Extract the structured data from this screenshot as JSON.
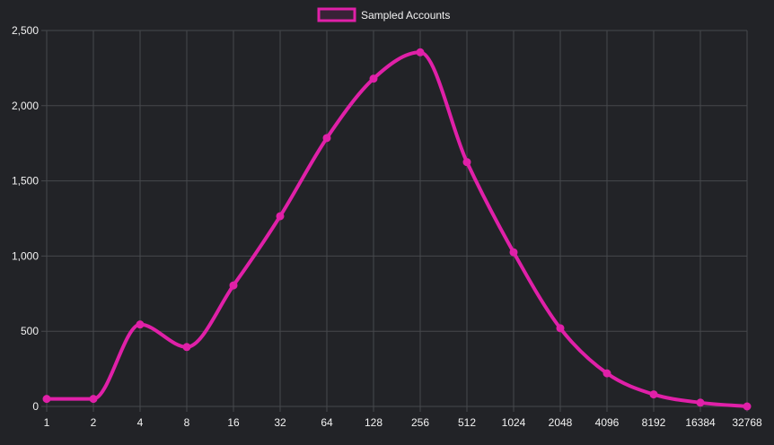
{
  "chart_data": {
    "type": "line",
    "x": [
      "1",
      "2",
      "4",
      "8",
      "16",
      "32",
      "64",
      "128",
      "256",
      "512",
      "1024",
      "2048",
      "4096",
      "8192",
      "16384",
      "32768"
    ],
    "series": [
      {
        "name": "Sampled Accounts",
        "values": [
          50,
          50,
          545,
          395,
          805,
          1265,
          1785,
          2180,
          2355,
          1625,
          1025,
          520,
          220,
          80,
          25,
          0
        ]
      }
    ],
    "ylim": [
      0,
      2500
    ],
    "yticks": [
      "0",
      "500",
      "1,000",
      "1,500",
      "2,000",
      "2,500"
    ],
    "grid": true,
    "legend_position": "top-center",
    "colors": {
      "series": "#e020a8",
      "grid": "#46484c",
      "text": "#f2f2f2",
      "background": "#222327"
    }
  }
}
